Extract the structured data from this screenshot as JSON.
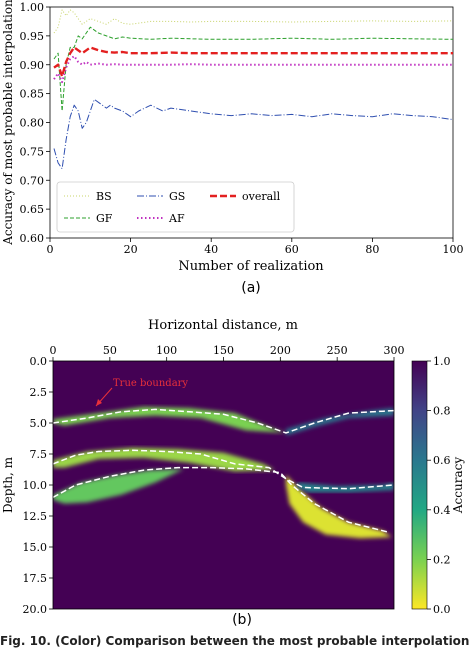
{
  "chart_data": [
    {
      "type": "line",
      "panel_label": "(a)",
      "xlabel": "Number of realization",
      "ylabel": "Accuracy of most probable interpolation",
      "xlim": [
        0,
        100
      ],
      "ylim": [
        0.6,
        1.0
      ],
      "x_ticks": [
        0,
        20,
        40,
        60,
        80,
        100
      ],
      "y_ticks": [
        0.6,
        0.65,
        0.7,
        0.75,
        0.8,
        0.85,
        0.9,
        0.95,
        1.0
      ],
      "legend_position": "lower-left",
      "series": [
        {
          "name": "BS",
          "color": "#c8d46a",
          "dash": "1 2",
          "width": 1,
          "x": [
            1,
            2,
            3,
            4,
            5,
            6,
            7,
            8,
            9,
            10,
            12,
            14,
            16,
            18,
            20,
            25,
            30,
            35,
            40,
            50,
            60,
            70,
            80,
            90,
            100
          ],
          "y": [
            0.955,
            0.965,
            0.995,
            0.985,
            0.995,
            0.99,
            0.98,
            0.97,
            0.975,
            0.98,
            0.975,
            0.97,
            0.98,
            0.972,
            0.97,
            0.975,
            0.975,
            0.974,
            0.975,
            0.975,
            0.974,
            0.975,
            0.976,
            0.975,
            0.976
          ]
        },
        {
          "name": "GF",
          "color": "#2ca02c",
          "dash": "4 2",
          "width": 1,
          "x": [
            1,
            2,
            3,
            4,
            5,
            6,
            7,
            8,
            9,
            10,
            12,
            14,
            16,
            18,
            20,
            25,
            30,
            35,
            40,
            50,
            60,
            70,
            80,
            90,
            100
          ],
          "y": [
            0.91,
            0.92,
            0.82,
            0.9,
            0.93,
            0.93,
            0.95,
            0.945,
            0.955,
            0.965,
            0.955,
            0.95,
            0.945,
            0.948,
            0.946,
            0.944,
            0.946,
            0.945,
            0.944,
            0.944,
            0.946,
            0.944,
            0.946,
            0.945,
            0.944
          ]
        },
        {
          "name": "GS",
          "color": "#2f4fb0",
          "dash": "7 2 1 2",
          "width": 1,
          "x": [
            1,
            2,
            3,
            4,
            5,
            6,
            7,
            8,
            9,
            10,
            11,
            12,
            13,
            14,
            15,
            16,
            18,
            20,
            22,
            25,
            28,
            30,
            35,
            40,
            45,
            50,
            55,
            60,
            65,
            70,
            75,
            80,
            85,
            90,
            95,
            100
          ],
          "y": [
            0.755,
            0.73,
            0.72,
            0.77,
            0.81,
            0.83,
            0.82,
            0.79,
            0.8,
            0.82,
            0.84,
            0.835,
            0.83,
            0.825,
            0.83,
            0.825,
            0.82,
            0.81,
            0.82,
            0.83,
            0.82,
            0.825,
            0.82,
            0.815,
            0.812,
            0.815,
            0.812,
            0.814,
            0.81,
            0.815,
            0.812,
            0.81,
            0.815,
            0.812,
            0.81,
            0.805
          ]
        },
        {
          "name": "AF",
          "color": "#c030c0",
          "dash": "1.5 2.5",
          "width": 2,
          "x": [
            1,
            2,
            3,
            4,
            5,
            6,
            7,
            8,
            9,
            10,
            12,
            14,
            16,
            18,
            20,
            25,
            30,
            35,
            40,
            50,
            60,
            70,
            80,
            90,
            100
          ],
          "y": [
            0.875,
            0.885,
            0.87,
            0.895,
            0.91,
            0.915,
            0.905,
            0.9,
            0.905,
            0.9,
            0.902,
            0.9,
            0.901,
            0.9,
            0.9,
            0.9,
            0.9,
            0.901,
            0.9,
            0.9,
            0.9,
            0.9,
            0.9,
            0.9,
            0.9
          ]
        },
        {
          "name": "overall",
          "color": "#e32020",
          "dash": "7 3",
          "width": 2.4,
          "x": [
            1,
            2,
            3,
            4,
            5,
            6,
            7,
            8,
            9,
            10,
            12,
            14,
            16,
            18,
            20,
            25,
            30,
            35,
            40,
            50,
            60,
            70,
            80,
            90,
            100
          ],
          "y": [
            0.895,
            0.9,
            0.88,
            0.905,
            0.92,
            0.93,
            0.925,
            0.92,
            0.925,
            0.93,
            0.925,
            0.922,
            0.921,
            0.922,
            0.92,
            0.92,
            0.921,
            0.92,
            0.92,
            0.92,
            0.92,
            0.92,
            0.92,
            0.92,
            0.92
          ]
        }
      ]
    },
    {
      "type": "heatmap",
      "panel_label": "(b)",
      "xlabel": "Horizontal distance, m",
      "ylabel": "Depth, m",
      "colorbar_label": "Accuracy",
      "xlim": [
        0,
        300
      ],
      "ylim": [
        20.0,
        0.0
      ],
      "x_ticks": [
        0,
        50,
        100,
        150,
        200,
        250,
        300
      ],
      "y_ticks": [
        "0.0",
        "2.5",
        "5.0",
        "7.5",
        "10.0",
        "12.5",
        "15.0",
        "17.5",
        "20.0"
      ],
      "colorbar_ticks": [
        "0.0",
        "0.2",
        "0.4",
        "0.6",
        "0.8",
        "1.0"
      ],
      "colorbar_range": [
        0.0,
        1.0
      ],
      "colormap": [
        "#fde725",
        "#7ad151",
        "#22a884",
        "#2a788e",
        "#414487",
        "#440154"
      ],
      "annotation": {
        "text": "True boundary",
        "color": "#e8303a"
      },
      "boundary_color": "#ffffff",
      "boundaries": [
        {
          "x": [
            0,
            30,
            60,
            90,
            120,
            150,
            180,
            205,
            230,
            260,
            300
          ],
          "y": [
            5.0,
            4.6,
            4.1,
            3.9,
            4.1,
            4.3,
            5.0,
            5.8,
            5.0,
            4.2,
            4.0
          ]
        },
        {
          "x": [
            0,
            20,
            40,
            70,
            100,
            130,
            160,
            190,
            205,
            220,
            260,
            300
          ],
          "y": [
            8.3,
            7.6,
            7.3,
            7.2,
            7.3,
            7.5,
            8.3,
            8.6,
            9.5,
            10.2,
            10.3,
            10.0
          ]
        },
        {
          "x": [
            0,
            20,
            50,
            80,
            110,
            140,
            170,
            200,
            210,
            230,
            260,
            295
          ],
          "y": [
            11.0,
            10.0,
            9.3,
            8.8,
            8.6,
            8.6,
            8.7,
            9.0,
            10.0,
            11.5,
            13.0,
            13.8
          ]
        }
      ],
      "high_uncertainty_regions": [
        {
          "x": [
            0,
            40,
            80,
            120,
            160,
            195,
            205,
            170,
            130,
            90,
            50,
            10,
            0
          ],
          "y": [
            4.7,
            4.2,
            3.7,
            3.8,
            4.2,
            5.5,
            5.8,
            5.6,
            4.6,
            4.4,
            4.6,
            5.2,
            5.0
          ],
          "value": 0.2
        },
        {
          "x": [
            205,
            240,
            280,
            300,
            300,
            260,
            230,
            205
          ],
          "y": [
            5.5,
            4.6,
            4.0,
            3.8,
            4.4,
            4.6,
            5.3,
            6.0
          ],
          "value": 0.6
        },
        {
          "x": [
            0,
            30,
            70,
            110,
            150,
            185,
            195,
            160,
            120,
            80,
            40,
            10,
            0
          ],
          "y": [
            8.0,
            7.3,
            7.0,
            7.1,
            7.4,
            8.3,
            8.8,
            8.9,
            8.2,
            7.8,
            7.9,
            8.6,
            8.6
          ],
          "value": 0.15
        },
        {
          "x": [
            0,
            25,
            55,
            85,
            115,
            90,
            60,
            30,
            10,
            0
          ],
          "y": [
            10.8,
            9.8,
            9.2,
            8.8,
            8.7,
            9.8,
            10.8,
            11.4,
            11.5,
            11.2
          ],
          "value": 0.25
        },
        {
          "x": [
            205,
            215,
            235,
            260,
            290,
            298,
            270,
            240,
            220,
            208,
            205
          ],
          "y": [
            9.2,
            10.2,
            11.8,
            13.0,
            13.7,
            14.2,
            14.3,
            14.0,
            13.0,
            11.5,
            10.0
          ],
          "value": 0.05
        },
        {
          "x": [
            215,
            250,
            290,
            300,
            300,
            260,
            225,
            215
          ],
          "y": [
            9.8,
            10.1,
            10.0,
            9.8,
            10.4,
            10.6,
            10.6,
            10.2
          ],
          "value": 0.55
        }
      ]
    }
  ],
  "caption": "Fig. 10. (Color) Comparison between the most probable interpolation"
}
